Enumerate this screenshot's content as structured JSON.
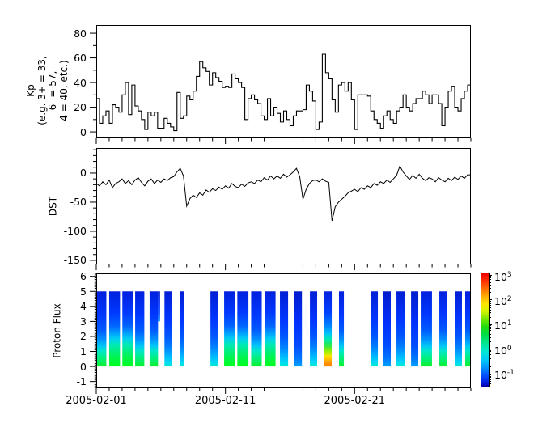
{
  "figure": {
    "background": "#ffffff",
    "panels": {
      "kp": {
        "title": "Kp\n(e.g. 3+ = 33,\n6- = 57,\n4 = 40, etc.)"
      },
      "dst": {
        "title": "DST"
      },
      "flux": {
        "title": "Proton Flux"
      }
    }
  },
  "chart_data": [
    {
      "type": "line",
      "name": "Kp",
      "step": true,
      "x_start": "2005-02-01",
      "x_interval_hours": 6,
      "x_total_days": 29,
      "xticks": [
        "2005-02-01",
        "2005-02-11",
        "2005-02-21"
      ],
      "xtick_days": [
        0,
        10,
        20
      ],
      "ylim": [
        -5.2,
        86.6
      ],
      "yticks": [
        0,
        20,
        40,
        60,
        80
      ],
      "y_minor_step": 10,
      "line_color": "#000000",
      "values": [
        27,
        7,
        13,
        17,
        7,
        22,
        20,
        16,
        30,
        40,
        14,
        38,
        21,
        17,
        10,
        2,
        16,
        13,
        16,
        3,
        3,
        11,
        7,
        4,
        1,
        32,
        11,
        13,
        29,
        26,
        33,
        45,
        57,
        52,
        49,
        38,
        48,
        44,
        41,
        36,
        37,
        36,
        47,
        43,
        40,
        36,
        10,
        27,
        30,
        26,
        23,
        13,
        10,
        27,
        13,
        20,
        15,
        8,
        17,
        10,
        5,
        13,
        17,
        17,
        18,
        38,
        33,
        25,
        2,
        8,
        63,
        48,
        43,
        26,
        16,
        38,
        40,
        33,
        40,
        26,
        2,
        30,
        30,
        30,
        29,
        17,
        10,
        7,
        3,
        13,
        17,
        10,
        7,
        17,
        20,
        30,
        20,
        17,
        23,
        27,
        27,
        33,
        30,
        23,
        30,
        30,
        23,
        5,
        20,
        33,
        37,
        20,
        17,
        27,
        33,
        38
      ]
    },
    {
      "type": "line",
      "name": "DST",
      "step": false,
      "x_start": "2005-02-01",
      "x_interval_hours": 6,
      "x_total_days": 29,
      "ylim": [
        -157,
        43
      ],
      "yticks": [
        0,
        -50,
        -100,
        -150
      ],
      "y_minor_step": 10,
      "line_color": "#000000",
      "values": [
        -18,
        -22,
        -15,
        -20,
        -12,
        -25,
        -18,
        -15,
        -10,
        -18,
        -13,
        -20,
        -12,
        -8,
        -16,
        -22,
        -14,
        -10,
        -18,
        -12,
        -16,
        -10,
        -13,
        -8,
        -6,
        2,
        8,
        -5,
        -57,
        -44,
        -38,
        -42,
        -34,
        -38,
        -29,
        -33,
        -27,
        -30,
        -24,
        -28,
        -22,
        -26,
        -18,
        -23,
        -25,
        -19,
        -23,
        -17,
        -15,
        -18,
        -12,
        -15,
        -8,
        -12,
        -5,
        -10,
        -5,
        -9,
        -2,
        -7,
        -3,
        2,
        8,
        -6,
        -45,
        -28,
        -18,
        -13,
        -12,
        -15,
        -10,
        -14,
        -16,
        -82,
        -58,
        -50,
        -45,
        -40,
        -34,
        -31,
        -28,
        -32,
        -25,
        -28,
        -22,
        -25,
        -18,
        -21,
        -15,
        -18,
        -12,
        -16,
        -10,
        -4,
        12,
        2,
        -5,
        -11,
        -4,
        -9,
        -2,
        -9,
        -13,
        -8,
        -10,
        -15,
        -8,
        -12,
        -15,
        -9,
        -13,
        -7,
        -11,
        -5,
        -9,
        -3
      ]
    },
    {
      "type": "heatmap",
      "name": "Proton Flux",
      "x_total_days": 29,
      "ylim": [
        -1.45,
        6.2
      ],
      "yticks": [
        -1,
        0,
        1,
        2,
        3,
        4,
        5,
        6
      ],
      "y_minor_step": 0.1,
      "bar_value_range": [
        0,
        5
      ],
      "bars": [
        {
          "day_start": 0.02,
          "day_end": 0.78,
          "gradient": "green"
        },
        {
          "day_start": 1.0,
          "day_end": 1.84,
          "gradient": "strong"
        },
        {
          "day_start": 2.02,
          "day_end": 2.84,
          "gradient": "strong"
        },
        {
          "day_start": 3.01,
          "day_end": 3.72,
          "gradient": "green"
        },
        {
          "day_start": 4.13,
          "day_end": 4.78,
          "gradient": "green"
        },
        {
          "day_start": 4.78,
          "day_end": 4.94,
          "gradient": "blue",
          "y0": 3,
          "y1": 5
        },
        {
          "day_start": 5.28,
          "day_end": 5.84,
          "gradient": "cyan"
        },
        {
          "day_start": 6.5,
          "day_end": 6.78,
          "gradient": "cyan"
        },
        {
          "day_start": 8.84,
          "day_end": 9.4,
          "gradient": "cyan"
        },
        {
          "day_start": 9.9,
          "day_end": 10.72,
          "gradient": "strong"
        },
        {
          "day_start": 10.92,
          "day_end": 11.78,
          "gradient": "strong"
        },
        {
          "day_start": 11.99,
          "day_end": 12.81,
          "gradient": "green"
        },
        {
          "day_start": 13.07,
          "day_end": 13.88,
          "gradient": "strong"
        },
        {
          "day_start": 14.22,
          "day_end": 14.85,
          "gradient": "cyan"
        },
        {
          "day_start": 15.29,
          "day_end": 15.92,
          "gradient": "blue"
        },
        {
          "day_start": 16.54,
          "day_end": 17.1,
          "gradient": "cyan"
        },
        {
          "day_start": 17.6,
          "day_end": 18.23,
          "gradient": "hot"
        },
        {
          "day_start": 18.79,
          "day_end": 19.17,
          "gradient": "green"
        },
        {
          "day_start": 21.24,
          "day_end": 21.8,
          "gradient": "cyan"
        },
        {
          "day_start": 22.18,
          "day_end": 22.8,
          "gradient": "blue"
        },
        {
          "day_start": 23.24,
          "day_end": 23.87,
          "gradient": "cyan"
        },
        {
          "day_start": 24.37,
          "day_end": 24.93,
          "gradient": "blue"
        },
        {
          "day_start": 25.12,
          "day_end": 25.99,
          "gradient": "green"
        },
        {
          "day_start": 26.56,
          "day_end": 27.18,
          "gradient": "green"
        },
        {
          "day_start": 27.75,
          "day_end": 28.31,
          "gradient": "cyan"
        },
        {
          "day_start": 28.56,
          "day_end": 28.99,
          "gradient": "green"
        }
      ],
      "gradients": {
        "strong": [
          [
            0,
            "#0020dd"
          ],
          [
            0.28,
            "#0038ff"
          ],
          [
            0.46,
            "#0064ff"
          ],
          [
            0.56,
            "#00a2ff"
          ],
          [
            0.63,
            "#00cff0"
          ],
          [
            0.71,
            "#00e9b4"
          ],
          [
            0.8,
            "#00ef7c"
          ],
          [
            0.9,
            "#00f743"
          ],
          [
            1,
            "#00ff1e"
          ]
        ],
        "green": [
          [
            0,
            "#0020dd"
          ],
          [
            0.32,
            "#0038ff"
          ],
          [
            0.52,
            "#005cff"
          ],
          [
            0.64,
            "#0092ff"
          ],
          [
            0.72,
            "#00c4f8"
          ],
          [
            0.79,
            "#00e6cc"
          ],
          [
            0.87,
            "#00ef8d"
          ],
          [
            1,
            "#0cf02c"
          ]
        ],
        "cyan": [
          [
            0,
            "#001ed4"
          ],
          [
            0.38,
            "#0036ff"
          ],
          [
            0.6,
            "#0056ff"
          ],
          [
            0.75,
            "#0084ff"
          ],
          [
            0.86,
            "#00b4ff"
          ],
          [
            0.94,
            "#00d8f4"
          ],
          [
            1,
            "#00ecd2"
          ]
        ],
        "blue": [
          [
            0,
            "#001ccc"
          ],
          [
            0.45,
            "#0032ff"
          ],
          [
            0.72,
            "#004cff"
          ],
          [
            0.88,
            "#0072ff"
          ],
          [
            1,
            "#00a2ff"
          ]
        ],
        "hot": [
          [
            0,
            "#0022dd"
          ],
          [
            0.28,
            "#0040ff"
          ],
          [
            0.45,
            "#0080ff"
          ],
          [
            0.56,
            "#00c2fa"
          ],
          [
            0.64,
            "#00e9ae"
          ],
          [
            0.72,
            "#2ce84a"
          ],
          [
            0.8,
            "#9cf000"
          ],
          [
            0.87,
            "#ffe400"
          ],
          [
            0.93,
            "#ffa400"
          ],
          [
            1,
            "#ff7a00"
          ]
        ]
      },
      "colorbar": {
        "scale": "log",
        "log_top": 3.1,
        "log_bottom": -1.5,
        "tick_exponents": [
          3,
          2,
          1,
          0,
          -1
        ],
        "label_base": "10",
        "stops": [
          [
            0,
            "#ee0000"
          ],
          [
            0.06,
            "#ff2a00"
          ],
          [
            0.13,
            "#ff6a00"
          ],
          [
            0.2,
            "#ffaa00"
          ],
          [
            0.27,
            "#ffe600"
          ],
          [
            0.33,
            "#d8f400"
          ],
          [
            0.4,
            "#7ae800"
          ],
          [
            0.47,
            "#22dc10"
          ],
          [
            0.54,
            "#00dd44"
          ],
          [
            0.62,
            "#00e694"
          ],
          [
            0.69,
            "#00e9d4"
          ],
          [
            0.76,
            "#00ccf4"
          ],
          [
            0.83,
            "#0096ff"
          ],
          [
            0.9,
            "#0050ff"
          ],
          [
            0.96,
            "#0020e0"
          ],
          [
            1,
            "#0000a8"
          ]
        ]
      }
    }
  ]
}
